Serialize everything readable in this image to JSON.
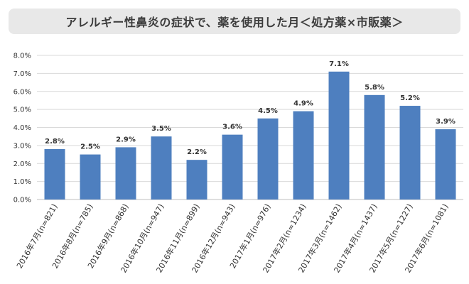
{
  "chart_data": {
    "type": "bar",
    "title": "アレルギー性鼻炎の症状で、薬を使用した月＜処方薬×市販薬＞",
    "categories": [
      "2016年7月(n=821)",
      "2016年8月(n=785)",
      "2016年9月(n=868)",
      "2016年10月(n=947)",
      "2016年11月(n=899)",
      "2016年12月(n=943)",
      "2017年1月(n=976)",
      "2017年2月(n=1234)",
      "2017年3月(n=1462)",
      "2017年4月(n=1437)",
      "2017年5月(n=1227)",
      "2017年6月(n=1081)"
    ],
    "values": [
      2.8,
      2.5,
      2.9,
      3.5,
      2.2,
      3.6,
      4.5,
      4.9,
      7.1,
      5.8,
      5.2,
      3.9
    ],
    "data_labels": [
      "2.8%",
      "2.5%",
      "2.9%",
      "3.5%",
      "2.2%",
      "3.6%",
      "4.5%",
      "4.9%",
      "7.1%",
      "5.8%",
      "5.2%",
      "3.9%"
    ],
    "ylim": [
      0,
      8
    ],
    "yticks": [
      "0.0%",
      "1.0%",
      "2.0%",
      "3.0%",
      "4.0%",
      "5.0%",
      "6.0%",
      "7.0%",
      "8.0%"
    ],
    "grid": true,
    "bar_color": "#4e7fbf",
    "grid_color": "#d9d9d9"
  }
}
